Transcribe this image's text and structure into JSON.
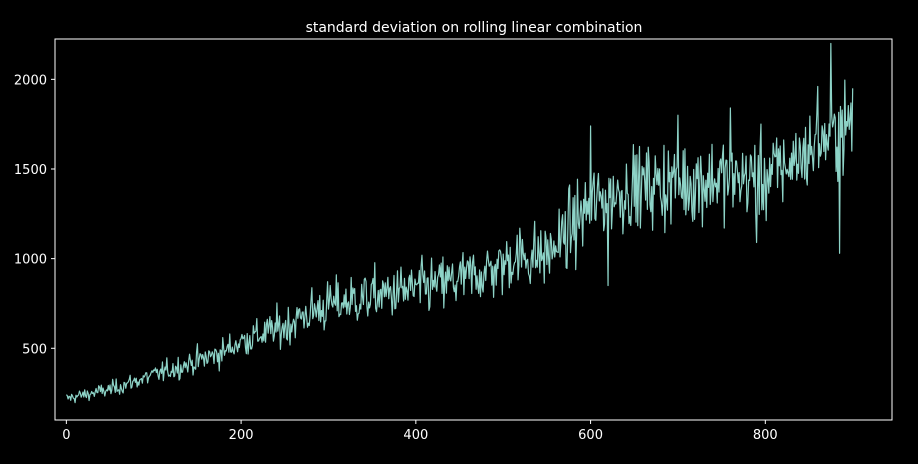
{
  "chart_data": {
    "type": "line",
    "title": "standard deviation on rolling linear combination",
    "xlabel": "",
    "ylabel": "",
    "xlim": [
      -13,
      945
    ],
    "ylim": [
      100,
      2225
    ],
    "grid": false,
    "x_ticks": [
      0,
      200,
      400,
      600,
      800
    ],
    "x_tick_labels": [
      "0",
      "200",
      "400",
      "600",
      "800"
    ],
    "y_ticks": [
      500,
      1000,
      1500,
      2000
    ],
    "y_tick_labels": [
      "500",
      "1000",
      "1500",
      "2000"
    ],
    "series": [
      {
        "color": "#8dd3c7",
        "n_points": 901,
        "x_start": 0,
        "x_step": 1,
        "trend": [
          [
            0,
            220
          ],
          [
            50,
            270
          ],
          [
            100,
            350
          ],
          [
            150,
            430
          ],
          [
            180,
            480
          ],
          [
            200,
            540
          ],
          [
            250,
            620
          ],
          [
            270,
            680
          ],
          [
            300,
            740
          ],
          [
            350,
            790
          ],
          [
            400,
            830
          ],
          [
            450,
            880
          ],
          [
            500,
            960
          ],
          [
            510,
            1010
          ],
          [
            550,
            1020
          ],
          [
            570,
            1120
          ],
          [
            600,
            1300
          ],
          [
            650,
            1400
          ],
          [
            700,
            1420
          ],
          [
            750,
            1450
          ],
          [
            800,
            1450
          ],
          [
            850,
            1600
          ],
          [
            880,
            1700
          ],
          [
            900,
            1750
          ]
        ],
        "spread": [
          [
            0,
            30
          ],
          [
            100,
            50
          ],
          [
            200,
            80
          ],
          [
            300,
            130
          ],
          [
            400,
            140
          ],
          [
            500,
            160
          ],
          [
            560,
            180
          ],
          [
            600,
            200
          ],
          [
            650,
            210
          ],
          [
            700,
            230
          ],
          [
            800,
            220
          ],
          [
            850,
            200
          ],
          [
            900,
            220
          ]
        ],
        "peaks": [
          [
            600,
            1740
          ],
          [
            620,
            850
          ],
          [
            700,
            1800
          ],
          [
            760,
            1840
          ],
          [
            790,
            1090
          ],
          [
            860,
            1960
          ],
          [
            875,
            2200
          ],
          [
            885,
            1030
          ],
          [
            900,
            1950
          ]
        ]
      }
    ]
  }
}
